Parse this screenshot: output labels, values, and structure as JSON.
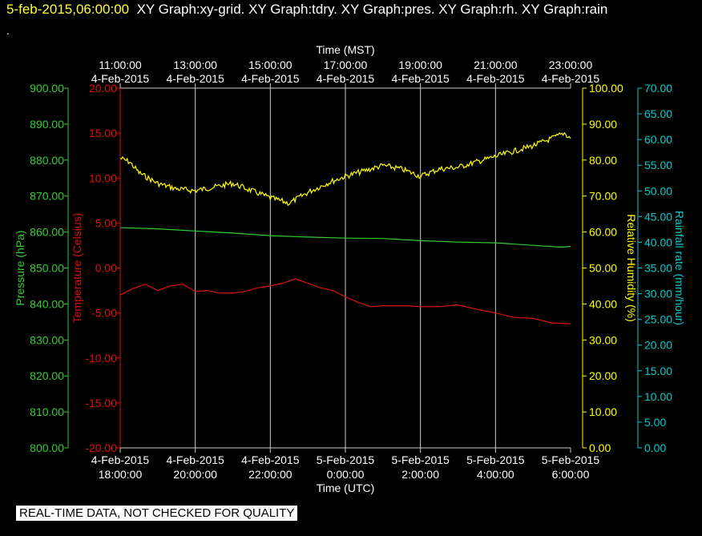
{
  "header": {
    "timestamp": "5-feb-2015,06:00:00",
    "graphs": "XY Graph:xy-grid.  XY Graph:tdry.  XY Graph:pres.  XY Graph:rh.  XY Graph:rain",
    "trailing_mark": "."
  },
  "footer": {
    "notice": "REAL-TIME DATA, NOT CHECKED FOR QUALITY"
  },
  "colors": {
    "background": "#000000",
    "pressure": "#33cc33",
    "temperature": "#dd1111",
    "humidity": "#ffff00",
    "rain": "#00cccc",
    "grid": "#cccccc",
    "axis_text": "#ffffff"
  },
  "chart_data": {
    "type": "line",
    "grid": true,
    "legend": "none",
    "x_top": {
      "title": "Time (MST)",
      "ticks": [
        {
          "time": "11:00:00",
          "date": "4-Feb-2015"
        },
        {
          "time": "13:00:00",
          "date": "4-Feb-2015"
        },
        {
          "time": "15:00:00",
          "date": "4-Feb-2015"
        },
        {
          "time": "17:00:00",
          "date": "4-Feb-2015"
        },
        {
          "time": "19:00:00",
          "date": "4-Feb-2015"
        },
        {
          "time": "21:00:00",
          "date": "4-Feb-2015"
        },
        {
          "time": "23:00:00",
          "date": "4-Feb-2015"
        }
      ]
    },
    "x_bottom": {
      "title": "Time (UTC)",
      "range": [
        "2015-02-04 18:00",
        "2015-02-05 06:00"
      ],
      "ticks": [
        {
          "date": "4-Feb-2015",
          "time": "18:00:00"
        },
        {
          "date": "4-Feb-2015",
          "time": "20:00:00"
        },
        {
          "date": "4-Feb-2015",
          "time": "22:00:00"
        },
        {
          "date": "5-Feb-2015",
          "time": "0:00:00"
        },
        {
          "date": "5-Feb-2015",
          "time": "2:00:00"
        },
        {
          "date": "5-Feb-2015",
          "time": "4:00:00"
        },
        {
          "date": "5-Feb-2015",
          "time": "6:00:00"
        }
      ]
    },
    "y_axes": {
      "pressure": {
        "label": "Pressure (hPa)",
        "range": [
          800,
          900
        ],
        "ticks": [
          "900.00",
          "890.00",
          "880.00",
          "870.00",
          "860.00",
          "850.00",
          "840.00",
          "830.00",
          "820.00",
          "810.00",
          "800.00"
        ]
      },
      "temperature": {
        "label": "Temperature (Celsius)",
        "range": [
          -20,
          20
        ],
        "ticks": [
          "20.00",
          "15.00",
          "10.00",
          "5.00",
          "0.00",
          "-5.00",
          "-10.00",
          "-15.00",
          "-20.00"
        ]
      },
      "humidity": {
        "label": "Relative Humidity (%)",
        "range": [
          0,
          100
        ],
        "ticks": [
          "100.00",
          "90.00",
          "80.00",
          "70.00",
          "60.00",
          "50.00",
          "40.00",
          "30.00",
          "20.00",
          "10.00",
          "0.00"
        ]
      },
      "rain": {
        "label": "Rainfall rate (mm/hour)",
        "range": [
          0,
          70
        ],
        "ticks": [
          "70.00",
          "65.00",
          "60.00",
          "55.00",
          "50.00",
          "45.00",
          "40.00",
          "35.00",
          "30.00",
          "25.00",
          "20.00",
          "15.00",
          "10.00",
          "5.00",
          "0.00"
        ]
      }
    },
    "series": [
      {
        "key": "temperature",
        "x": [
          "2015-02-04 18:00",
          "2015-02-04 18:20",
          "2015-02-04 18:40",
          "2015-02-04 19:00",
          "2015-02-04 19:20",
          "2015-02-04 19:40",
          "2015-02-04 20:00",
          "2015-02-04 20:20",
          "2015-02-04 20:40",
          "2015-02-04 21:00",
          "2015-02-04 21:20",
          "2015-02-04 21:40",
          "2015-02-04 22:00",
          "2015-02-04 22:20",
          "2015-02-04 22:40",
          "2015-02-04 23:00",
          "2015-02-04 23:20",
          "2015-02-04 23:40",
          "2015-02-05 00:00",
          "2015-02-05 00:20",
          "2015-02-05 00:40",
          "2015-02-05 01:00",
          "2015-02-05 01:20",
          "2015-02-05 01:40",
          "2015-02-05 02:00",
          "2015-02-05 02:30",
          "2015-02-05 03:00",
          "2015-02-05 03:30",
          "2015-02-05 04:00",
          "2015-02-05 04:30",
          "2015-02-05 05:00",
          "2015-02-05 05:30",
          "2015-02-05 06:00"
        ],
        "y": [
          -3.0,
          -2.3,
          -1.8,
          -2.5,
          -2.0,
          -1.8,
          -2.6,
          -2.5,
          -2.8,
          -2.8,
          -2.6,
          -2.2,
          -2.0,
          -1.7,
          -1.2,
          -1.7,
          -2.2,
          -2.5,
          -3.2,
          -3.8,
          -4.3,
          -4.2,
          -4.2,
          -4.2,
          -4.3,
          -4.3,
          -4.1,
          -4.6,
          -5.0,
          -5.5,
          -5.6,
          -6.1,
          -6.2
        ]
      },
      {
        "key": "pressure",
        "x": [
          "2015-02-04 18:00",
          "2015-02-04 19:00",
          "2015-02-04 20:00",
          "2015-02-04 21:00",
          "2015-02-04 22:00",
          "2015-02-04 23:00",
          "2015-02-05 00:00",
          "2015-02-05 01:00",
          "2015-02-05 02:00",
          "2015-02-05 03:00",
          "2015-02-05 04:00",
          "2015-02-05 05:00",
          "2015-02-05 05:45",
          "2015-02-05 06:00"
        ],
        "y": [
          861.2,
          860.9,
          860.3,
          859.7,
          859.0,
          858.6,
          858.3,
          858.2,
          857.6,
          857.2,
          857.0,
          856.3,
          855.8,
          856.0
        ]
      },
      {
        "key": "humidity",
        "x": [
          "2015-02-04 18:00",
          "2015-02-04 18:15",
          "2015-02-04 18:30",
          "2015-02-04 18:45",
          "2015-02-04 19:00",
          "2015-02-04 19:30",
          "2015-02-04 20:00",
          "2015-02-04 20:30",
          "2015-02-04 21:00",
          "2015-02-04 21:30",
          "2015-02-04 22:00",
          "2015-02-04 22:30",
          "2015-02-04 23:00",
          "2015-02-04 23:30",
          "2015-02-05 00:00",
          "2015-02-05 00:30",
          "2015-02-05 01:00",
          "2015-02-05 01:30",
          "2015-02-05 02:00",
          "2015-02-05 02:30",
          "2015-02-05 03:00",
          "2015-02-05 03:30",
          "2015-02-05 04:00",
          "2015-02-05 04:30",
          "2015-02-05 05:00",
          "2015-02-05 05:30",
          "2015-02-05 05:50",
          "2015-02-05 06:00"
        ],
        "y": [
          80.5,
          79.5,
          76.5,
          75.0,
          73.5,
          72.0,
          71.5,
          72.5,
          73.5,
          71.5,
          69.5,
          68.0,
          71.0,
          73.5,
          75.5,
          77.0,
          78.5,
          77.5,
          75.5,
          77.5,
          78.0,
          79.5,
          81.0,
          82.5,
          84.0,
          86.0,
          87.5,
          86.0
        ]
      },
      {
        "key": "rain",
        "x": [],
        "y": []
      }
    ]
  }
}
